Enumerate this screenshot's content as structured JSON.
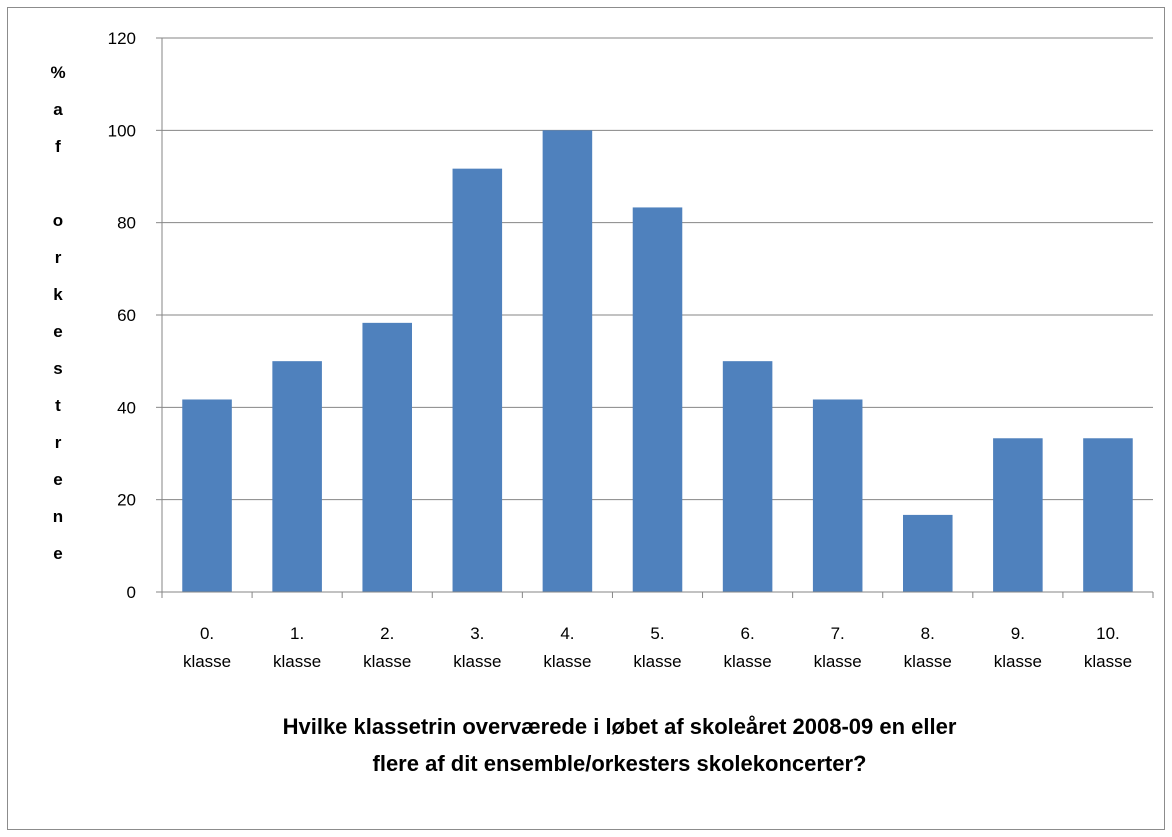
{
  "chart_data": {
    "type": "bar",
    "title": "",
    "xlabel_lines": [
      "Hvilke klassetrin overværede i løbet af skoleåret 2008-09 en eller",
      "flere af dit ensemble/orkesters skolekoncerter?"
    ],
    "ylabel_chars": [
      "%",
      "a",
      "f",
      "",
      "o",
      "r",
      "k",
      "e",
      "s",
      "t",
      "r",
      "e",
      "n",
      "e"
    ],
    "categories": [
      [
        "0.",
        "klasse"
      ],
      [
        "1.",
        "klasse"
      ],
      [
        "2.",
        "klasse"
      ],
      [
        "3.",
        "klasse"
      ],
      [
        "4.",
        "klasse"
      ],
      [
        "5.",
        "klasse"
      ],
      [
        "6.",
        "klasse"
      ],
      [
        "7.",
        "klasse"
      ],
      [
        "8.",
        "klasse"
      ],
      [
        "9.",
        "klasse"
      ],
      [
        "10.",
        "klasse"
      ]
    ],
    "values": [
      41.7,
      50,
      58.3,
      91.7,
      100,
      83.3,
      50,
      41.7,
      16.7,
      33.3,
      33.3
    ],
    "ylim": [
      0,
      120
    ],
    "yticks": [
      0,
      20,
      40,
      60,
      80,
      100,
      120
    ],
    "grid": true,
    "legend": "none",
    "bar_color": "#4f81bd",
    "grid_color": "#868686"
  }
}
